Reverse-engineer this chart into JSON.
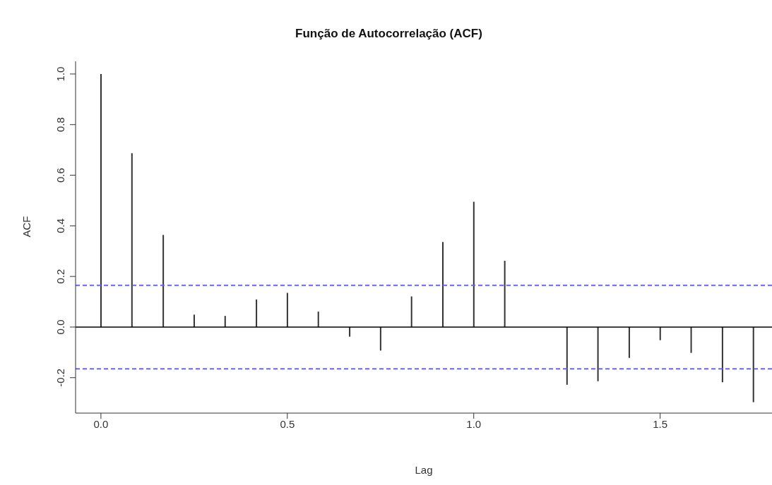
{
  "chart_data": {
    "type": "bar",
    "title": "Função de Autocorrelação (ACF)",
    "xlabel": "Lag",
    "ylabel": "ACF",
    "x": [
      0,
      0.083,
      0.167,
      0.25,
      0.333,
      0.417,
      0.5,
      0.583,
      0.667,
      0.75,
      0.833,
      0.917,
      1,
      1.083,
      1.167,
      1.25,
      1.333,
      1.417,
      1.5,
      1.583,
      1.667,
      1.75
    ],
    "values": [
      1,
      0.687,
      0.364,
      0.049,
      0.044,
      0.109,
      0.135,
      0.061,
      -0.038,
      -0.093,
      0.121,
      0.336,
      0.495,
      0.262,
      null,
      -0.228,
      -0.214,
      -0.122,
      -0.052,
      -0.102,
      -0.218,
      -0.297
    ],
    "color": "#333333",
    "xlim": [
      -0.068,
      1.8
    ],
    "ylim": [
      -0.34,
      1.05
    ],
    "xticks": [
      {
        "value": 0,
        "label": "0.0"
      },
      {
        "value": 0.5,
        "label": "0.5"
      },
      {
        "value": 1,
        "label": "1.0"
      },
      {
        "value": 1.5,
        "label": "1.5"
      }
    ],
    "yticks": [
      -0.2,
      {
        "value": 0,
        "label": "0.0"
      },
      0.2,
      0.4,
      0.6,
      0.8,
      {
        "value": 1,
        "label": "1.0"
      }
    ],
    "ref_lines": [
      {
        "axis": "y",
        "value": 0,
        "color": "#000000",
        "line_style": "solid"
      },
      {
        "axis": "y",
        "value": 0.165,
        "color": "#6666ff",
        "line_style": "dashed"
      },
      {
        "axis": "y",
        "value": -0.165,
        "color": "#6666ff",
        "line_style": "dashed"
      }
    ],
    "grid": false,
    "legend": false
  }
}
